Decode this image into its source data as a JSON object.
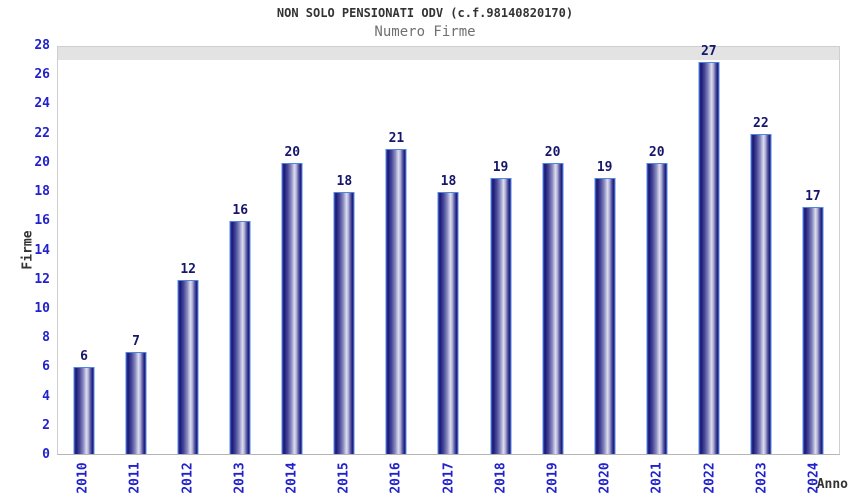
{
  "chart_data": {
    "type": "bar",
    "title": "NON SOLO PENSIONATI ODV (c.f.98140820170)",
    "subtitle": "Numero Firme",
    "xlabel": "Anno",
    "ylabel": "Firme",
    "categories": [
      "2010",
      "2011",
      "2012",
      "2013",
      "2014",
      "2015",
      "2016",
      "2017",
      "2018",
      "2019",
      "2020",
      "2021",
      "2022",
      "2023",
      "2024"
    ],
    "values": [
      6,
      7,
      12,
      16,
      20,
      18,
      21,
      18,
      19,
      20,
      19,
      20,
      27,
      22,
      17
    ],
    "ylim": [
      0,
      28
    ],
    "ytick_step": 2,
    "yticks": [
      0,
      2,
      4,
      6,
      8,
      10,
      12,
      14,
      16,
      18,
      20,
      22,
      24,
      26,
      28
    ],
    "grid": "horizontal alternating bands, line every 2 units",
    "legend_position": "none",
    "colors": {
      "tick_label": "#2222cc",
      "value_label": "#16166b",
      "title": "#333333",
      "subtitle": "#707070",
      "band_gray": "#f2f2f2",
      "band_white": "#ffffff",
      "grid_line": "#e3e3e3",
      "plot_border": "#cfcfcf",
      "bar_border": "#4f86e0",
      "bar_dark": "#1b1b78",
      "bar_mid": "#8d8dc0",
      "bar_highlight": "#dedef2"
    }
  }
}
